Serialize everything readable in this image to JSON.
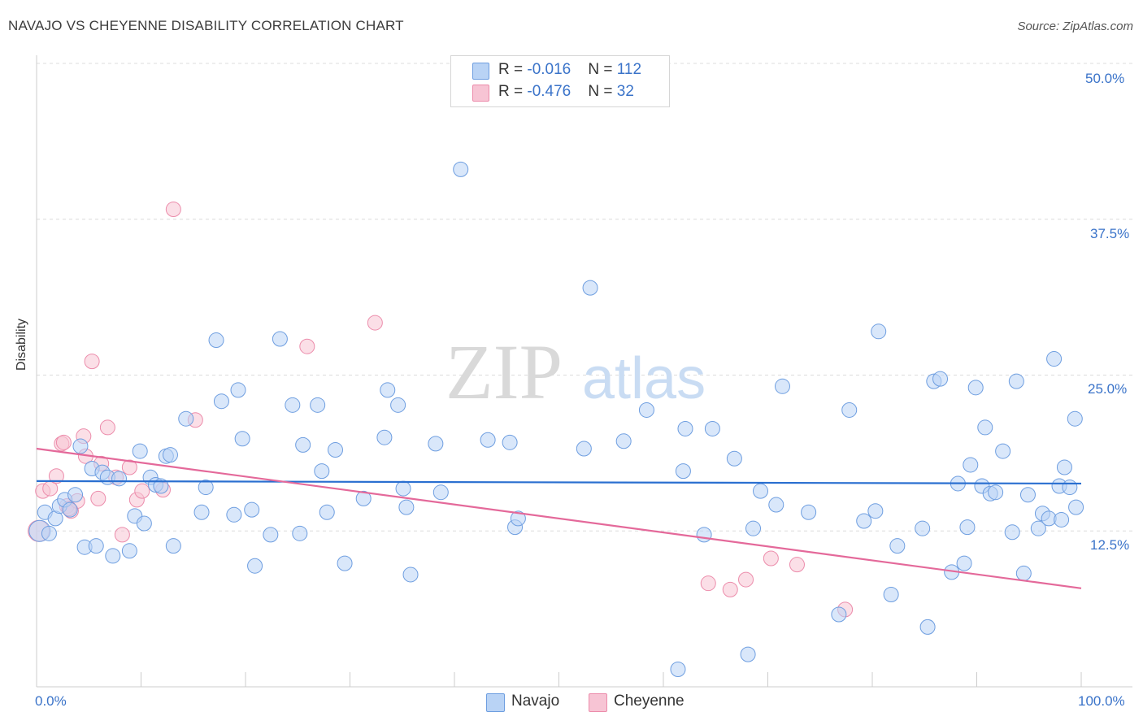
{
  "title": "NAVAJO VS CHEYENNE DISABILITY CORRELATION CHART",
  "source": "Source: ZipAtlas.com",
  "watermark": {
    "zip": "ZIP",
    "atlas": "atlas"
  },
  "legend": {
    "rows": [
      {
        "r_label": "R = ",
        "r_value": "-0.016",
        "n_label": "N = ",
        "n_value": "112",
        "color": "#b9d3f5"
      },
      {
        "r_label": "R = ",
        "r_value": "-0.476",
        "n_label": "N = ",
        "n_value": "32",
        "color": "#f7c4d4"
      }
    ]
  },
  "bottom_legend": [
    {
      "label": "Navajo",
      "color": "#b9d3f5"
    },
    {
      "label": "Cheyenne",
      "color": "#f7c4d4"
    }
  ],
  "colors": {
    "navajo_stroke": "#6e9ee0",
    "navajo_line": "#2a6fd0",
    "cheyenne_stroke": "#ec8cab",
    "cheyenne_line": "#e4699a",
    "axis_text": "#3a73c9"
  },
  "chart_data": {
    "type": "scatter",
    "xlabel": "",
    "ylabel": "Disability",
    "x_tick_labels": [
      "0.0%",
      "100.0%"
    ],
    "y_tick_labels": [
      "12.5%",
      "25.0%",
      "37.5%",
      "50.0%"
    ],
    "xlim": [
      0,
      100
    ],
    "ylim": [
      0,
      50
    ],
    "grid": "horizontal dashed",
    "series": [
      {
        "name": "Navajo",
        "trend": {
          "x": [
            0,
            100
          ],
          "y": [
            16.5,
            16.3
          ]
        },
        "points": [
          [
            0.3,
            12.5
          ],
          [
            0.8,
            14
          ],
          [
            1.2,
            12.3
          ],
          [
            1.8,
            13.5
          ],
          [
            2.2,
            14.5
          ],
          [
            2.7,
            15
          ],
          [
            3.2,
            14.2
          ],
          [
            3.7,
            15.4
          ],
          [
            4.2,
            19.3
          ],
          [
            4.6,
            11.2
          ],
          [
            5.3,
            17.5
          ],
          [
            5.7,
            11.3
          ],
          [
            6.3,
            17.2
          ],
          [
            6.8,
            16.8
          ],
          [
            7.3,
            10.5
          ],
          [
            7.9,
            16.7
          ],
          [
            8.9,
            10.9
          ],
          [
            9.4,
            13.7
          ],
          [
            9.9,
            18.9
          ],
          [
            10.3,
            13.1
          ],
          [
            10.9,
            16.8
          ],
          [
            11.4,
            16.2
          ],
          [
            11.9,
            16.1
          ],
          [
            12.4,
            18.5
          ],
          [
            12.8,
            18.6
          ],
          [
            13.1,
            11.3
          ],
          [
            14.3,
            21.5
          ],
          [
            15.8,
            14
          ],
          [
            16.2,
            16
          ],
          [
            17.2,
            27.8
          ],
          [
            17.7,
            22.9
          ],
          [
            18.9,
            13.8
          ],
          [
            19.3,
            23.8
          ],
          [
            19.7,
            19.9
          ],
          [
            20.6,
            14.2
          ],
          [
            20.9,
            9.7
          ],
          [
            22.4,
            12.2
          ],
          [
            23.3,
            27.9
          ],
          [
            24.5,
            22.6
          ],
          [
            25.2,
            12.3
          ],
          [
            25.5,
            19.4
          ],
          [
            26.9,
            22.6
          ],
          [
            27.3,
            17.3
          ],
          [
            27.8,
            14
          ],
          [
            28.6,
            19
          ],
          [
            29.5,
            9.9
          ],
          [
            31.3,
            15.1
          ],
          [
            33.3,
            20
          ],
          [
            33.6,
            23.8
          ],
          [
            34.6,
            22.6
          ],
          [
            35.1,
            15.9
          ],
          [
            35.4,
            14.4
          ],
          [
            35.8,
            9
          ],
          [
            38.2,
            19.5
          ],
          [
            38.7,
            15.6
          ],
          [
            40.6,
            41.5
          ],
          [
            43.2,
            19.8
          ],
          [
            45.3,
            19.6
          ],
          [
            45.8,
            12.8
          ],
          [
            46.1,
            13.5
          ],
          [
            52.4,
            19.1
          ],
          [
            53,
            32
          ],
          [
            56.2,
            19.7
          ],
          [
            58.4,
            22.2
          ],
          [
            61.4,
            1.4
          ],
          [
            61.9,
            17.3
          ],
          [
            62.1,
            20.7
          ],
          [
            63.9,
            12.2
          ],
          [
            64.7,
            20.7
          ],
          [
            66.8,
            18.3
          ],
          [
            68.1,
            2.6
          ],
          [
            68.6,
            12.7
          ],
          [
            69.3,
            15.7
          ],
          [
            70.8,
            14.6
          ],
          [
            71.4,
            24.1
          ],
          [
            73.9,
            14
          ],
          [
            76.8,
            5.8
          ],
          [
            77.8,
            22.2
          ],
          [
            79.2,
            13.3
          ],
          [
            80.3,
            14.1
          ],
          [
            80.6,
            28.5
          ],
          [
            81.8,
            7.4
          ],
          [
            82.4,
            11.3
          ],
          [
            84.8,
            12.7
          ],
          [
            85.3,
            4.8
          ],
          [
            85.9,
            24.5
          ],
          [
            86.5,
            24.7
          ],
          [
            87.6,
            9.2
          ],
          [
            88.2,
            16.3
          ],
          [
            88.8,
            9.9
          ],
          [
            89.1,
            12.8
          ],
          [
            89.4,
            17.8
          ],
          [
            89.9,
            24
          ],
          [
            90.5,
            16.1
          ],
          [
            90.8,
            20.8
          ],
          [
            91.3,
            15.5
          ],
          [
            91.8,
            15.6
          ],
          [
            92.5,
            18.9
          ],
          [
            93.4,
            12.4
          ],
          [
            93.8,
            24.5
          ],
          [
            94.5,
            9.1
          ],
          [
            94.9,
            15.4
          ],
          [
            95.9,
            12.7
          ],
          [
            96.3,
            13.9
          ],
          [
            96.9,
            13.5
          ],
          [
            97.4,
            26.3
          ],
          [
            97.9,
            16.1
          ],
          [
            98.4,
            17.6
          ],
          [
            98.9,
            16
          ],
          [
            99.5,
            14.4
          ],
          [
            98.1,
            13.4
          ],
          [
            99.4,
            21.5
          ]
        ]
      },
      {
        "name": "Cheyenne",
        "trend": {
          "x": [
            0,
            100
          ],
          "y": [
            19.1,
            7.9
          ]
        },
        "points": [
          [
            0.2,
            12.5
          ],
          [
            0.6,
            15.7
          ],
          [
            1.3,
            15.9
          ],
          [
            1.9,
            16.9
          ],
          [
            2.4,
            19.5
          ],
          [
            2.9,
            14.5
          ],
          [
            3.3,
            14.1
          ],
          [
            3.9,
            14.9
          ],
          [
            4.7,
            18.5
          ],
          [
            5.3,
            26.1
          ],
          [
            5.9,
            15.1
          ],
          [
            6.8,
            20.8
          ],
          [
            7.6,
            16.8
          ],
          [
            8.2,
            12.2
          ],
          [
            8.9,
            17.6
          ],
          [
            9.6,
            15
          ],
          [
            10.1,
            15.7
          ],
          [
            12.1,
            15.8
          ],
          [
            13.1,
            38.3
          ],
          [
            15.2,
            21.4
          ],
          [
            25.9,
            27.3
          ],
          [
            32.4,
            29.2
          ],
          [
            64.3,
            8.3
          ],
          [
            66.4,
            7.8
          ],
          [
            67.9,
            8.6
          ],
          [
            70.3,
            10.3
          ],
          [
            72.8,
            9.8
          ],
          [
            77.4,
            6.2
          ],
          [
            2.6,
            19.6
          ],
          [
            4.5,
            20.1
          ],
          [
            3.1,
            14.3
          ],
          [
            6.2,
            17.9
          ]
        ]
      }
    ]
  }
}
